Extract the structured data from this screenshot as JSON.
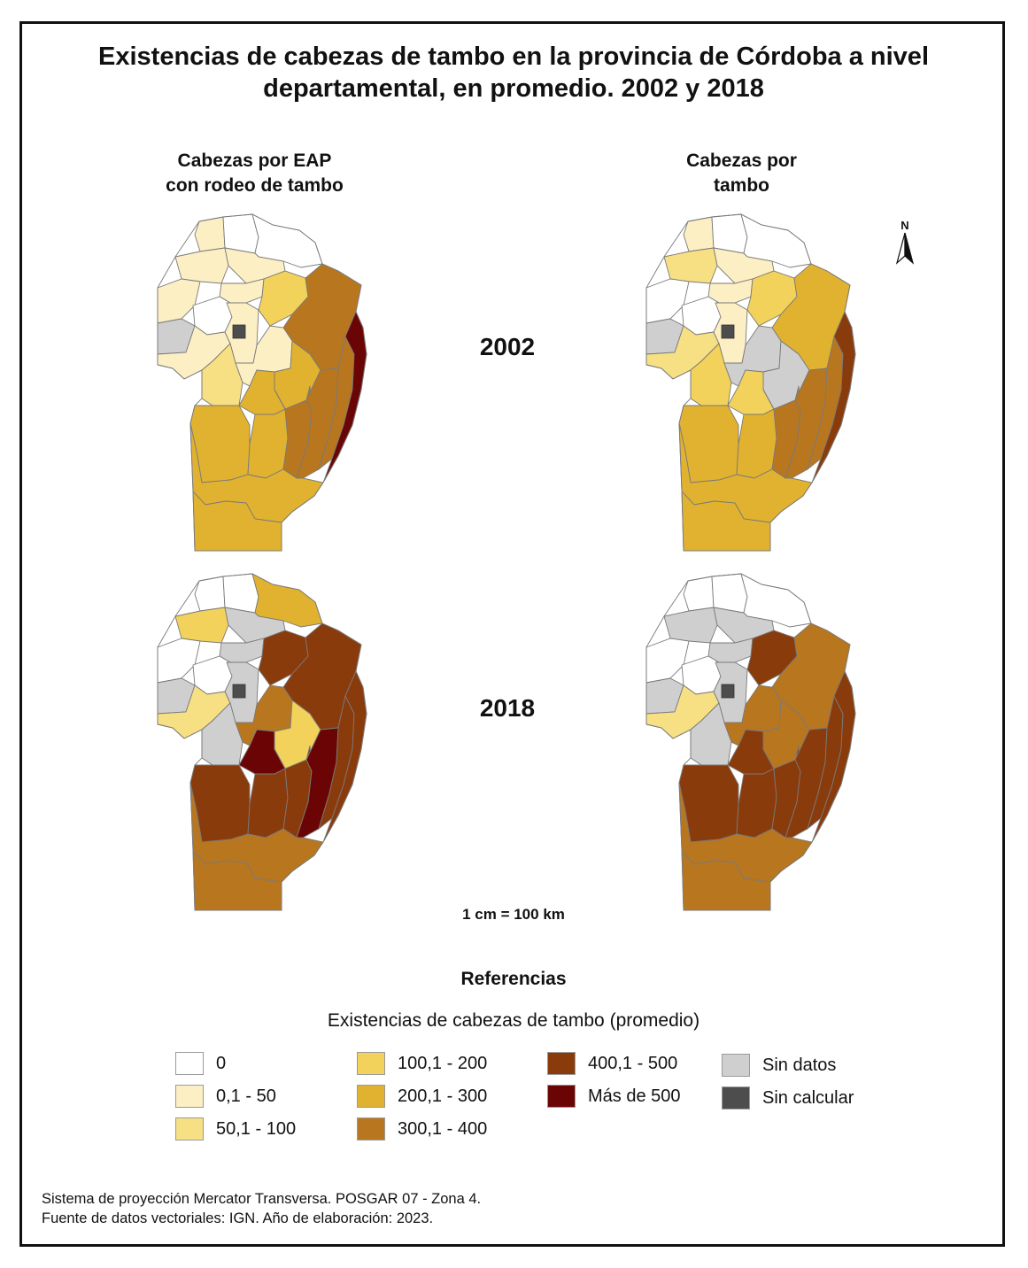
{
  "title": "Existencias de cabezas de tambo en la provincia de Córdoba a nivel departamental, en promedio. 2002 y 2018",
  "columns": {
    "left": [
      "Cabezas por EAP",
      "con rodeo de tambo"
    ],
    "right": [
      "Cabezas por",
      "tambo"
    ]
  },
  "years": [
    "2002",
    "2018"
  ],
  "north_label": "N",
  "scale": "1 cm = 100 km",
  "references_title": "Referencias",
  "legend": {
    "title": "Existencias de cabezas de tambo (promedio)",
    "items": [
      {
        "label": "0",
        "color": "#ffffff"
      },
      {
        "label": "0,1 - 50",
        "color": "#fcefc4"
      },
      {
        "label": "50,1 - 100",
        "color": "#f7df83"
      },
      {
        "label": "100,1 - 200",
        "color": "#f2d25a"
      },
      {
        "label": "200,1 - 300",
        "color": "#e1b22f"
      },
      {
        "label": "300,1 - 400",
        "color": "#b8761f"
      },
      {
        "label": "400,1 - 500",
        "color": "#8a3b0c"
      },
      {
        "label": "Más de 500",
        "color": "#6b0505"
      },
      {
        "label": "Sin datos",
        "color": "#cfcfcf"
      },
      {
        "label": "Sin calcular",
        "color": "#4d4d4d"
      }
    ]
  },
  "maps": {
    "eap_2002": {
      "n1": 1,
      "n2": 0,
      "n3": 0,
      "nw1": 1,
      "nw2": 1,
      "nw3": 1,
      "nw4": 1,
      "nc1": 1,
      "nc2": 3,
      "ne": 5,
      "w1": 0,
      "w2": 8,
      "w3": 1,
      "c1": 2,
      "c2": 1,
      "c3": 4,
      "c4": 4,
      "e1": 5,
      "e2": 5,
      "e3": 5,
      "e4": 7,
      "s1": 4,
      "s2": 4,
      "s3": 4,
      "s4": 4,
      "capital": 9
    },
    "tambo_2002": {
      "n1": 1,
      "n2": 0,
      "n3": 0,
      "nw1": 2,
      "nw2": 1,
      "nw3": 1,
      "nw4": 0,
      "nc1": 1,
      "nc2": 3,
      "ne": 4,
      "w1": 0,
      "w2": 8,
      "w3": 2,
      "c1": 3,
      "c2": 8,
      "c3": 8,
      "c4": 3,
      "e1": 5,
      "e2": 5,
      "e3": 5,
      "e4": 6,
      "s1": 4,
      "s2": 4,
      "s3": 4,
      "s4": 4,
      "capital": 9
    },
    "eap_2018": {
      "n1": 0,
      "n2": 0,
      "n3": 4,
      "nw1": 3,
      "nw2": 8,
      "nw3": 8,
      "nw4": 0,
      "nc1": 8,
      "nc2": 6,
      "ne": 6,
      "w1": 0,
      "w2": 8,
      "w3": 2,
      "c1": 8,
      "c2": 5,
      "c3": 3,
      "c4": 7,
      "e1": 6,
      "e2": 7,
      "e3": 6,
      "e4": 6,
      "s1": 6,
      "s2": 6,
      "s3": 5,
      "s4": 5,
      "capital": 9
    },
    "tambo_2018": {
      "n1": 0,
      "n2": 0,
      "n3": 0,
      "nw1": 8,
      "nw2": 8,
      "nw3": 8,
      "nw4": 0,
      "nc1": 8,
      "nc2": 6,
      "ne": 5,
      "w1": 0,
      "w2": 8,
      "w3": 2,
      "c1": 8,
      "c2": 5,
      "c3": 5,
      "c4": 6,
      "e1": 6,
      "e2": 6,
      "e3": 6,
      "e4": 6,
      "s1": 6,
      "s2": 6,
      "s3": 5,
      "s4": 5,
      "capital": 9
    }
  },
  "footer": [
    "Sistema de proyección Mercator Transversa. POSGAR 07 - Zona 4.",
    "Fuente de datos vectoriales: IGN. Año de elaboración: 2023."
  ]
}
